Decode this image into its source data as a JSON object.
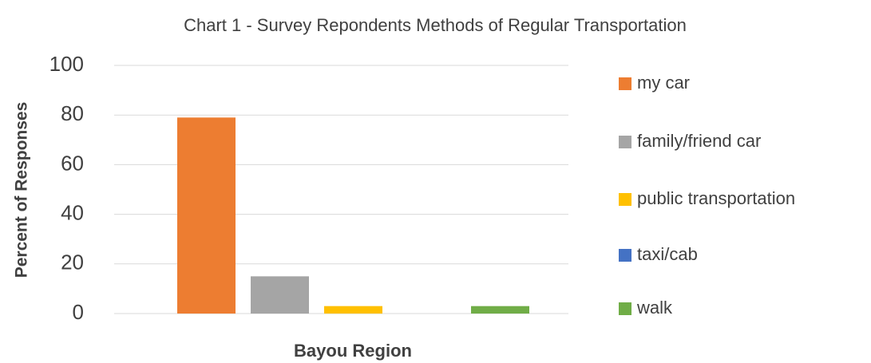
{
  "chart_data": {
    "type": "bar",
    "title": "Chart 1 - Survey Repondents Methods of Regular Transportation",
    "x_label": "Bayou Region",
    "y_label": "Percent of Responses",
    "categories": [
      null
    ],
    "series": [
      {
        "name": "my car",
        "color": "#ed7d31",
        "values": [
          79
        ]
      },
      {
        "name": "family/friend car",
        "color": "#a5a5a5",
        "values": [
          15
        ]
      },
      {
        "name": "public transportation",
        "color": "#ffc000",
        "values": [
          3
        ]
      },
      {
        "name": "taxi/cab",
        "color": "#4472c4",
        "values": [
          0
        ]
      },
      {
        "name": "walk",
        "color": "#70ad47",
        "values": [
          3
        ]
      }
    ],
    "ylim": [
      0,
      100
    ],
    "yticks": [
      0,
      20,
      40,
      60,
      80,
      100
    ],
    "grid": true,
    "legend": "right"
  }
}
